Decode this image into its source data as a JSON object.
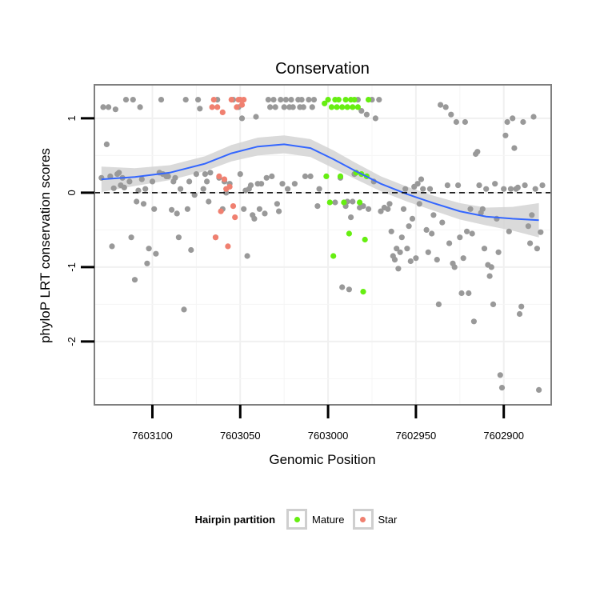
{
  "chart_data": {
    "type": "scatter",
    "title": "Conservation",
    "xlabel": "Genomic Position",
    "ylabel": "phyloP LRT conservation scores",
    "x_reversed": true,
    "xlim": [
      7603133,
      7602873
    ],
    "ylim": [
      -2.85,
      1.45
    ],
    "x_ticks": [
      7603100,
      7603050,
      7603000,
      7602950,
      7602900
    ],
    "x_tick_labels": [
      "7603100",
      "7603050",
      "7603000",
      "7602950",
      "7602900"
    ],
    "y_ticks": [
      1,
      0,
      -1,
      -2
    ],
    "y_tick_labels": [
      "1",
      "0",
      "-1",
      "-2"
    ],
    "reference_line": {
      "y": 0,
      "style": "dashed"
    },
    "legend": {
      "title": "Hairpin partition",
      "position": "bottom",
      "entries": [
        {
          "label": "Mature",
          "color": "#66ee11"
        },
        {
          "label": "Star",
          "color": "#f08070"
        }
      ]
    },
    "colors": {
      "other": "#999999",
      "mature": "#66ee11",
      "star": "#f08070",
      "smooth": "#3366ff",
      "band": "#d3d3d3"
    },
    "series": [
      {
        "name": "Other",
        "color": "#999999",
        "points": [
          [
            7603129,
            0.2
          ],
          [
            7603128,
            1.15
          ],
          [
            7603126,
            0.65
          ],
          [
            7603125,
            1.15
          ],
          [
            7603124,
            0.22
          ],
          [
            7603123,
            -0.72
          ],
          [
            7603122,
            0.06
          ],
          [
            7603121,
            1.12
          ],
          [
            7603120,
            0.25
          ],
          [
            7603119,
            0.27
          ],
          [
            7603118,
            0.1
          ],
          [
            7603117,
            0.2
          ],
          [
            7603116,
            0.07
          ],
          [
            7603115,
            1.25
          ],
          [
            7603113,
            0.15
          ],
          [
            7603112,
            -0.6
          ],
          [
            7603111,
            1.25
          ],
          [
            7603110,
            -1.17
          ],
          [
            7603109,
            -0.12
          ],
          [
            7603108,
            0.03
          ],
          [
            7603107,
            1.15
          ],
          [
            7603106,
            0.18
          ],
          [
            7603105,
            -0.15
          ],
          [
            7603104,
            0.05
          ],
          [
            7603103,
            -0.95
          ],
          [
            7603102,
            -0.75
          ],
          [
            7603100,
            0.15
          ],
          [
            7603099,
            -0.22
          ],
          [
            7603098,
            -0.82
          ],
          [
            7603096,
            0.27
          ],
          [
            7603095,
            1.25
          ],
          [
            7603094,
            0.25
          ],
          [
            7603092,
            0.22
          ],
          [
            7603091,
            0.22
          ],
          [
            7603089,
            -0.23
          ],
          [
            7603088,
            0.15
          ],
          [
            7603087,
            0.2
          ],
          [
            7603086,
            -0.28
          ],
          [
            7603085,
            -0.6
          ],
          [
            7603084,
            0.05
          ],
          [
            7603082,
            -1.57
          ],
          [
            7603081,
            1.25
          ],
          [
            7603080,
            -0.22
          ],
          [
            7603079,
            0.15
          ],
          [
            7603078,
            -0.77
          ],
          [
            7603076,
            -0.03
          ],
          [
            7603075,
            0.25
          ],
          [
            7603074,
            1.25
          ],
          [
            7603073,
            1.13
          ],
          [
            7603071,
            0.05
          ],
          [
            7603070,
            0.25
          ],
          [
            7603069,
            0.15
          ],
          [
            7603068,
            -0.12
          ],
          [
            7603067,
            0.27
          ],
          [
            7603064,
            -0.6
          ],
          [
            7603063,
            1.25
          ],
          [
            7603062,
            0.2
          ],
          [
            7603060,
            -0.22
          ],
          [
            7603059,
            0.15
          ],
          [
            7603058,
            0.0
          ],
          [
            7603056,
            0.12
          ],
          [
            7603054,
            1.25
          ],
          [
            7603051,
            1.15
          ],
          [
            7603050,
            0.25
          ],
          [
            7603049,
            1.0
          ],
          [
            7603048,
            -0.22
          ],
          [
            7603047,
            0.03
          ],
          [
            7603046,
            -0.85
          ],
          [
            7603045,
            0.05
          ],
          [
            7603044,
            0.1
          ],
          [
            7603043,
            -0.3
          ],
          [
            7603042,
            -0.35
          ],
          [
            7603041,
            1.02
          ],
          [
            7603040,
            0.12
          ],
          [
            7603039,
            -0.22
          ],
          [
            7603038,
            0.12
          ],
          [
            7603036,
            -0.28
          ],
          [
            7603035,
            0.2
          ],
          [
            7603034,
            1.25
          ],
          [
            7603033,
            1.15
          ],
          [
            7603032,
            0.22
          ],
          [
            7603031,
            1.25
          ],
          [
            7603030,
            1.15
          ],
          [
            7603029,
            -0.15
          ],
          [
            7603028,
            -0.25
          ],
          [
            7603027,
            1.25
          ],
          [
            7603026,
            0.12
          ],
          [
            7603025,
            1.15
          ],
          [
            7603024,
            1.25
          ],
          [
            7603023,
            0.05
          ],
          [
            7603022,
            1.15
          ],
          [
            7603021,
            1.25
          ],
          [
            7603020,
            1.15
          ],
          [
            7603019,
            0.12
          ],
          [
            7603017,
            1.25
          ],
          [
            7603016,
            1.15
          ],
          [
            7603015,
            1.25
          ],
          [
            7603014,
            1.15
          ],
          [
            7603013,
            0.22
          ],
          [
            7603011,
            1.25
          ],
          [
            7603010,
            0.22
          ],
          [
            7603009,
            1.15
          ],
          [
            7603008,
            1.25
          ],
          [
            7603006,
            -0.18
          ],
          [
            7603005,
            0.05
          ],
          [
            7602996,
            -0.13
          ],
          [
            7602993,
            0.2
          ],
          [
            7602992,
            -1.27
          ],
          [
            7602990,
            -0.18
          ],
          [
            7602989,
            -0.12
          ],
          [
            7602988,
            -1.3
          ],
          [
            7602987,
            -0.33
          ],
          [
            7602986,
            -0.12
          ],
          [
            7602985,
            0.25
          ],
          [
            7602983,
            1.25
          ],
          [
            7602982,
            -0.2
          ],
          [
            7602981,
            1.1
          ],
          [
            7602980,
            -0.18
          ],
          [
            7602978,
            1.05
          ],
          [
            7602977,
            -0.22
          ],
          [
            7602975,
            1.25
          ],
          [
            7602974,
            0.15
          ],
          [
            7602973,
            1.0
          ],
          [
            7602971,
            1.25
          ],
          [
            7602970,
            -0.25
          ],
          [
            7602968,
            -0.2
          ],
          [
            7602966,
            -0.22
          ],
          [
            7602965,
            -0.15
          ],
          [
            7602964,
            -0.52
          ],
          [
            7602963,
            -0.85
          ],
          [
            7602962,
            -0.9
          ],
          [
            7602961,
            -0.75
          ],
          [
            7602960,
            -1.02
          ],
          [
            7602959,
            -0.8
          ],
          [
            7602958,
            -0.6
          ],
          [
            7602957,
            -0.22
          ],
          [
            7602956,
            0.05
          ],
          [
            7602955,
            -0.75
          ],
          [
            7602954,
            -0.45
          ],
          [
            7602953,
            -0.92
          ],
          [
            7602952,
            -0.35
          ],
          [
            7602951,
            0.08
          ],
          [
            7602950,
            -0.88
          ],
          [
            7602949,
            0.12
          ],
          [
            7602948,
            -0.15
          ],
          [
            7602947,
            0.18
          ],
          [
            7602946,
            0.05
          ],
          [
            7602944,
            -0.5
          ],
          [
            7602943,
            -0.8
          ],
          [
            7602942,
            0.05
          ],
          [
            7602941,
            -0.55
          ],
          [
            7602940,
            -0.3
          ],
          [
            7602938,
            -0.9
          ],
          [
            7602937,
            -1.5
          ],
          [
            7602936,
            1.18
          ],
          [
            7602935,
            -0.4
          ],
          [
            7602933,
            1.15
          ],
          [
            7602932,
            0.1
          ],
          [
            7602931,
            -0.68
          ],
          [
            7602930,
            1.05
          ],
          [
            7602929,
            -0.95
          ],
          [
            7602928,
            -1.0
          ],
          [
            7602927,
            0.95
          ],
          [
            7602926,
            0.1
          ],
          [
            7602925,
            -0.6
          ],
          [
            7602924,
            -1.35
          ],
          [
            7602923,
            -0.88
          ],
          [
            7602922,
            0.95
          ],
          [
            7602921,
            -0.52
          ],
          [
            7602920,
            -1.35
          ],
          [
            7602919,
            -0.22
          ],
          [
            7602918,
            -0.55
          ],
          [
            7602917,
            -1.73
          ],
          [
            7602916,
            0.52
          ],
          [
            7602915,
            0.55
          ],
          [
            7602914,
            0.1
          ],
          [
            7602913,
            -0.27
          ],
          [
            7602912,
            -0.22
          ],
          [
            7602911,
            -0.75
          ],
          [
            7602910,
            0.05
          ],
          [
            7602909,
            -0.97
          ],
          [
            7602908,
            -1.12
          ],
          [
            7602907,
            -1.0
          ],
          [
            7602906,
            -1.5
          ],
          [
            7602905,
            0.12
          ],
          [
            7602904,
            -0.35
          ],
          [
            7602903,
            -0.8
          ],
          [
            7602902,
            -2.45
          ],
          [
            7602901,
            -2.62
          ],
          [
            7602900,
            0.05
          ],
          [
            7602899,
            0.77
          ],
          [
            7602898,
            0.95
          ],
          [
            7602897,
            -0.52
          ],
          [
            7602896,
            0.05
          ],
          [
            7602895,
            1.0
          ],
          [
            7602894,
            0.6
          ],
          [
            7602893,
            0.05
          ],
          [
            7602892,
            0.07
          ],
          [
            7602891,
            -1.63
          ],
          [
            7602890,
            -1.53
          ],
          [
            7602889,
            0.95
          ],
          [
            7602888,
            0.1
          ],
          [
            7602886,
            -0.45
          ],
          [
            7602885,
            -0.68
          ],
          [
            7602884,
            -0.3
          ],
          [
            7602883,
            1.02
          ],
          [
            7602882,
            0.05
          ],
          [
            7602881,
            -0.75
          ],
          [
            7602880,
            -2.65
          ],
          [
            7602879,
            -0.53
          ],
          [
            7602878,
            0.1
          ]
        ]
      },
      {
        "name": "Mature",
        "color": "#66ee11",
        "points": [
          [
            7603002,
            1.2
          ],
          [
            7603001,
            0.22
          ],
          [
            7603000,
            1.25
          ],
          [
            7602999,
            -0.13
          ],
          [
            7602998,
            1.15
          ],
          [
            7602997,
            -0.85
          ],
          [
            7602996,
            1.25
          ],
          [
            7602995,
            1.15
          ],
          [
            7602994,
            1.25
          ],
          [
            7602993,
            0.22
          ],
          [
            7602992,
            1.15
          ],
          [
            7602991,
            -0.13
          ],
          [
            7602990,
            1.25
          ],
          [
            7602989,
            1.15
          ],
          [
            7602988,
            -0.55
          ],
          [
            7602987,
            1.25
          ],
          [
            7602986,
            1.15
          ],
          [
            7602985,
            1.25
          ],
          [
            7602984,
            0.27
          ],
          [
            7602983,
            1.15
          ],
          [
            7602982,
            -0.13
          ],
          [
            7602981,
            0.25
          ],
          [
            7602980,
            -1.33
          ],
          [
            7602979,
            -0.63
          ],
          [
            7602978,
            0.22
          ],
          [
            7602977,
            1.25
          ]
        ]
      },
      {
        "name": "Star",
        "color": "#f08070",
        "points": [
          [
            7603066,
            1.15
          ],
          [
            7603065,
            1.25
          ],
          [
            7603064,
            -0.6
          ],
          [
            7603063,
            1.15
          ],
          [
            7603062,
            0.22
          ],
          [
            7603061,
            -0.25
          ],
          [
            7603060,
            1.08
          ],
          [
            7603059,
            0.18
          ],
          [
            7603058,
            0.05
          ],
          [
            7603057,
            -0.72
          ],
          [
            7603056,
            0.08
          ],
          [
            7603055,
            1.25
          ],
          [
            7603054,
            -0.18
          ],
          [
            7603053,
            -0.33
          ],
          [
            7603052,
            1.15
          ],
          [
            7603051,
            1.25
          ],
          [
            7603050,
            1.25
          ],
          [
            7603049,
            1.18
          ],
          [
            7603048,
            1.25
          ]
        ]
      }
    ],
    "smooth": {
      "method": "loess",
      "x": [
        7603129,
        7603110,
        7603090,
        7603070,
        7603055,
        7603040,
        7603025,
        7603010,
        7602997,
        7602985,
        7602970,
        7602955,
        7602940,
        7602925,
        7602910,
        7602895,
        7602880
      ],
      "y": [
        0.18,
        0.21,
        0.27,
        0.39,
        0.53,
        0.62,
        0.65,
        0.6,
        0.45,
        0.3,
        0.12,
        -0.02,
        -0.14,
        -0.25,
        -0.32,
        -0.35,
        -0.37
      ],
      "se": [
        0.17,
        0.12,
        0.1,
        0.1,
        0.11,
        0.12,
        0.12,
        0.12,
        0.12,
        0.11,
        0.1,
        0.1,
        0.1,
        0.11,
        0.12,
        0.16,
        0.23
      ]
    }
  }
}
